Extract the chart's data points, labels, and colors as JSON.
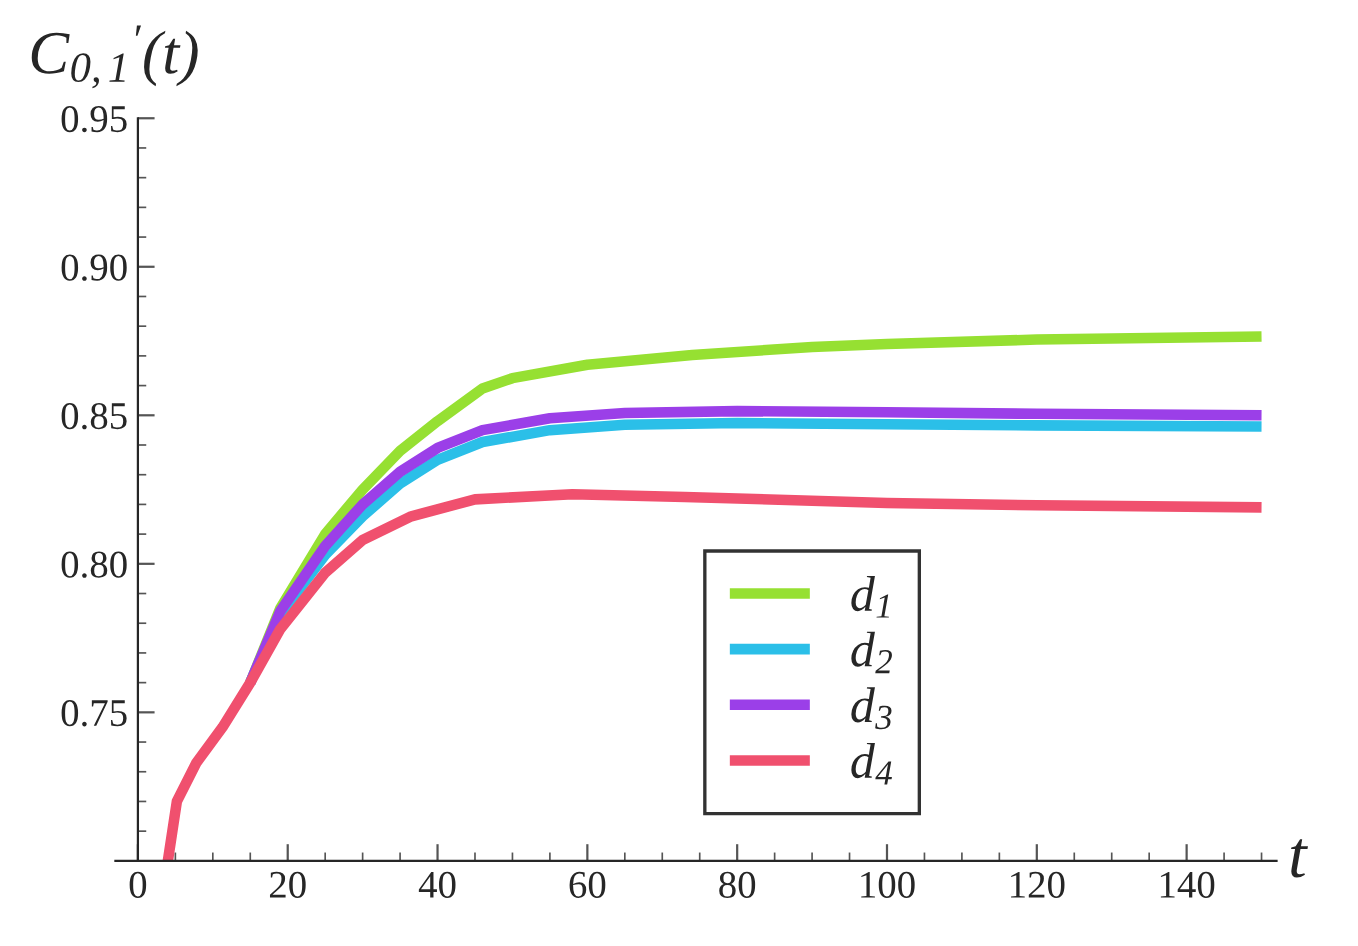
{
  "chart_data": {
    "type": "line",
    "xlabel": "t",
    "ylabel": "C$_{0,1}$$^{′}$(t)",
    "xlim": [
      -3,
      152
    ],
    "ylim": [
      0.7,
      0.95
    ],
    "xticks": [
      0,
      20,
      40,
      60,
      80,
      100,
      120,
      140
    ],
    "yticks": [
      {
        "value": 0.75,
        "label": "0.75"
      },
      {
        "value": 0.8,
        "label": "0.80"
      },
      {
        "value": 0.85,
        "label": "0.85"
      },
      {
        "value": 0.9,
        "label": "0.90"
      },
      {
        "value": 0.95,
        "label": "0.95"
      }
    ],
    "grid": false,
    "legend": "bottom",
    "marker": "none",
    "line_style": "solid",
    "series": [
      {
        "name": "d$_{1}$",
        "color": "#96e032",
        "x": [
          15,
          19,
          25,
          30,
          35,
          40,
          46,
          50,
          60,
          74,
          90,
          100,
          120,
          150
        ],
        "values": [
          0.76,
          0.785,
          0.81,
          0.825,
          0.838,
          0.848,
          0.859,
          0.8625,
          0.867,
          0.8703,
          0.873,
          0.874,
          0.8755,
          0.8765
        ]
      },
      {
        "name": "d$_{2}$",
        "color": "#2bbfe8",
        "x": [
          15,
          19,
          25,
          30,
          35,
          40,
          46,
          55,
          65,
          80,
          100,
          120,
          150
        ],
        "values": [
          0.76,
          0.783,
          0.803,
          0.816,
          0.827,
          0.835,
          0.841,
          0.845,
          0.8468,
          0.8474,
          0.847,
          0.8466,
          0.8462
        ]
      },
      {
        "name": "d$_{3}$",
        "color": "#9b3fe8",
        "x": [
          15,
          19,
          25,
          30,
          35,
          40,
          46,
          55,
          65,
          80,
          100,
          120,
          150
        ],
        "values": [
          0.76,
          0.784,
          0.806,
          0.82,
          0.831,
          0.839,
          0.845,
          0.849,
          0.8508,
          0.8514,
          0.851,
          0.8505,
          0.85
        ]
      },
      {
        "name": "d$_{4}$",
        "color": "#f0506e",
        "x": [
          4,
          5.2,
          7.8,
          11.3,
          15,
          19,
          25,
          30,
          36.5,
          45,
          58,
          73,
          100,
          120,
          150
        ],
        "values": [
          0.7,
          0.72,
          0.733,
          0.745,
          0.76,
          0.778,
          0.797,
          0.808,
          0.816,
          0.8217,
          0.8234,
          0.8225,
          0.8205,
          0.8197,
          0.819
        ]
      }
    ]
  }
}
